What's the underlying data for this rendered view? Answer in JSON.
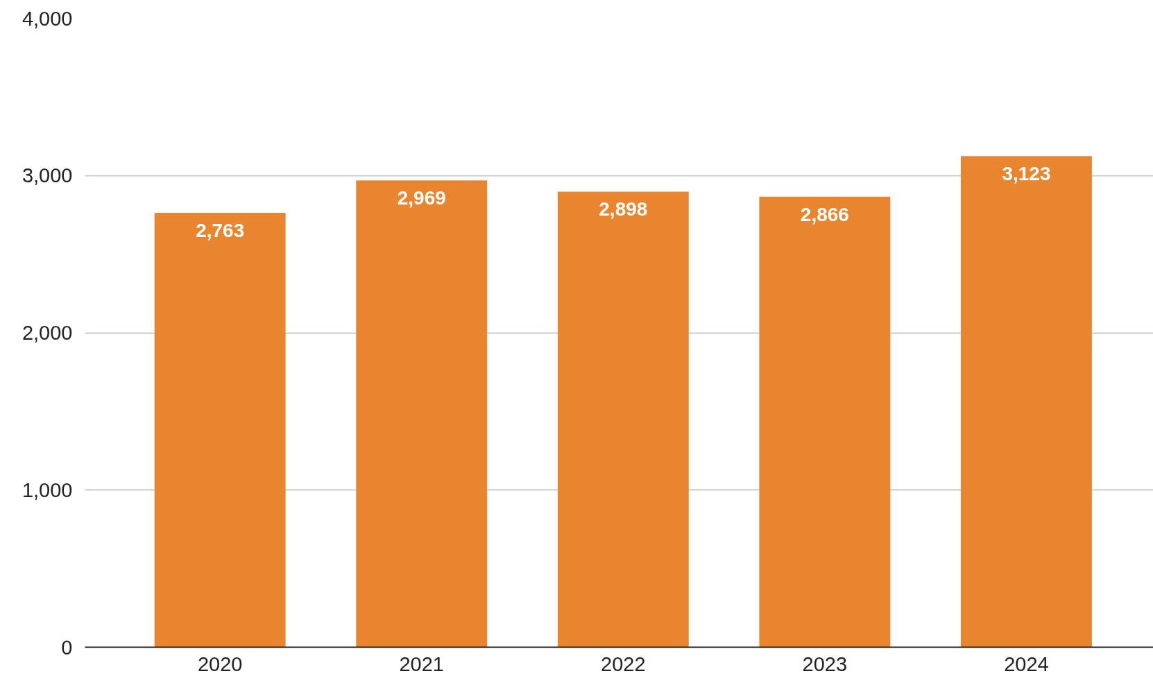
{
  "chart_data": {
    "type": "bar",
    "categories": [
      "2020",
      "2021",
      "2022",
      "2023",
      "2024"
    ],
    "values": [
      2763,
      2969,
      2898,
      2866,
      3123
    ],
    "color": "#e8852e",
    "ylim": [
      0,
      4000
    ],
    "yticks": [
      {
        "value": 0,
        "label": "0"
      },
      {
        "value": 1000,
        "label": "1,000"
      },
      {
        "value": 2000,
        "label": "2,000"
      },
      {
        "value": 3000,
        "label": "3,000"
      },
      {
        "value": 4000,
        "label": "4,000"
      }
    ],
    "grid": "y",
    "value_labels": [
      "2,763",
      "2,969",
      "2,898",
      "2,866",
      "3,123"
    ]
  }
}
